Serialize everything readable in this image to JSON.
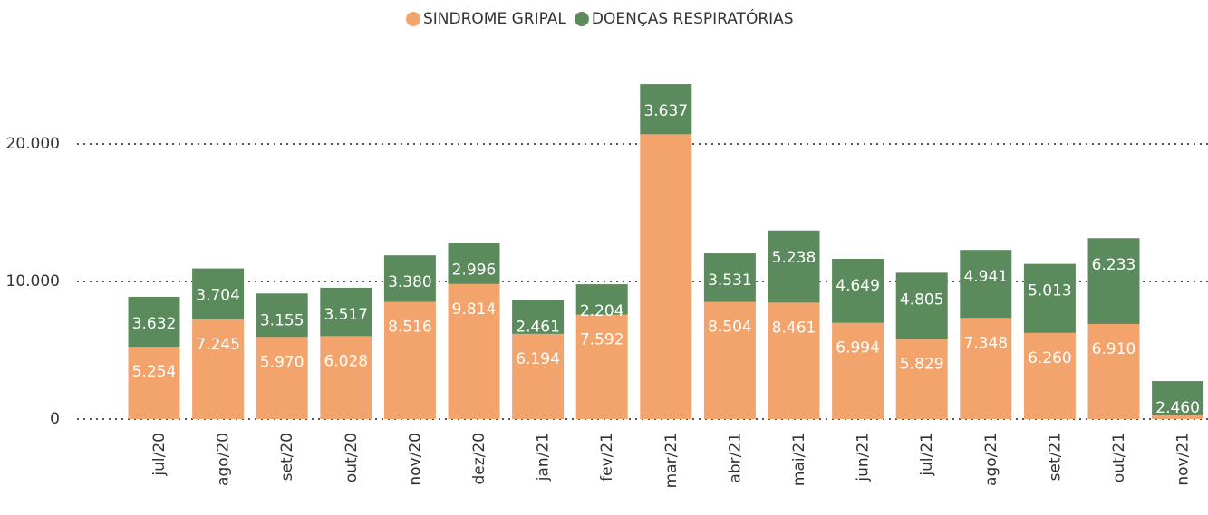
{
  "chart_data": {
    "type": "stacked_bar",
    "categories": [
      "jul/20",
      "ago/20",
      "set/20",
      "out/20",
      "nov/20",
      "dez/20",
      "jan/21",
      "fev/21",
      "mar/21",
      "abr/21",
      "mai/21",
      "jun/21",
      "jul/21",
      "ago/21",
      "set/21",
      "out/21",
      "nov/21"
    ],
    "series": [
      {
        "name": "SINDROME GRIPAL",
        "color": "#f2a46c",
        "values": [
          5254,
          7245,
          5970,
          6028,
          8516,
          9814,
          6194,
          7592,
          20700,
          8504,
          8461,
          6994,
          5829,
          7348,
          6260,
          6910,
          300
        ],
        "value_labels": [
          "5.254",
          "7.245",
          "5.970",
          "6.028",
          "8.516",
          "9.814",
          "6.194",
          "7.592",
          null,
          "8.504",
          "8.461",
          "6.994",
          "5.829",
          "7.348",
          "6.260",
          "6.910",
          null
        ]
      },
      {
        "name": "DOENÇAS RESPIRATÓRIAS",
        "color": "#5b8a5c",
        "values": [
          3632,
          3704,
          3155,
          3517,
          3380,
          2996,
          2461,
          2204,
          3637,
          3531,
          5238,
          4649,
          4805,
          4941,
          5013,
          6233,
          2460
        ],
        "value_labels": [
          "3.632",
          "3.704",
          "3.155",
          "3.517",
          "3.380",
          "2.996",
          "2.461",
          "2.204",
          "3.637",
          "3.531",
          "5.238",
          "4.649",
          "4.805",
          "4.941",
          "5.013",
          "6.233",
          "2.460"
        ]
      }
    ],
    "ylim": [
      0,
      25000
    ],
    "yticks": [
      0,
      {
        "value": 10000,
        "label": "10.000"
      },
      {
        "value": 20000,
        "label": "20.000"
      }
    ],
    "grid": true
  }
}
